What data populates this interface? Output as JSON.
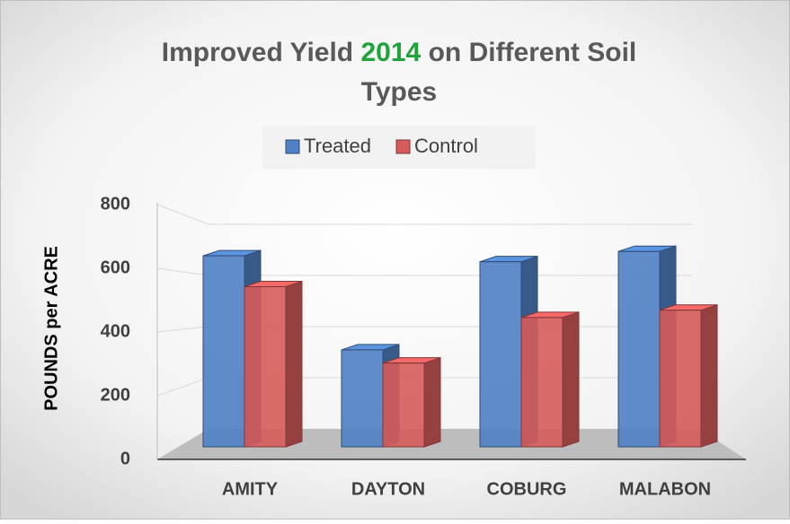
{
  "chart_data": {
    "type": "bar3d",
    "title": [
      "Improved Yield",
      "2014",
      "on Different Soil",
      "Types"
    ],
    "y_label": "POUNDS  per  ACRE",
    "categories": [
      "AMITY",
      "DAYTON",
      "COBURG",
      "MALABON"
    ],
    "series": [
      {
        "name": "Treated",
        "color": "#4f81c4",
        "values": [
          650,
          330,
          630,
          665
        ]
      },
      {
        "name": "Control",
        "color": "#d65b5b",
        "values": [
          545,
          285,
          440,
          465
        ]
      }
    ],
    "ylim": [
      0,
      800
    ],
    "yticks": [
      0,
      200,
      400,
      600,
      800
    ],
    "grid": true,
    "legend": "top"
  }
}
